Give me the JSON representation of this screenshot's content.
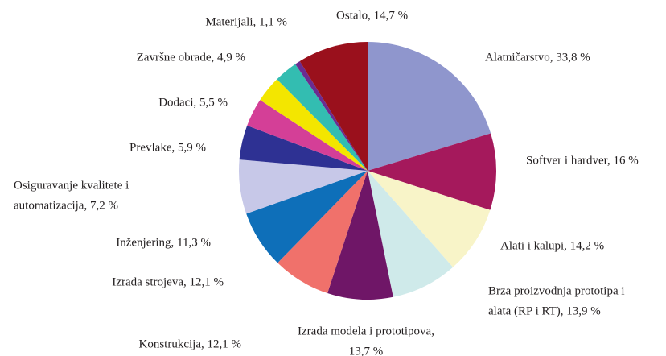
{
  "chart_data": {
    "type": "pie",
    "labels": [
      [
        "Alatničarstvo, 33,8 %"
      ],
      [
        "Softver i hardver, 16 %"
      ],
      [
        "Alati i kalupi, 14,2 %"
      ],
      [
        "Brza proizvodnja prototipa i",
        "alata (RP i RT), 13,9 %"
      ],
      [
        "Izrada modela i prototipova,",
        "13,7 %"
      ],
      [
        "Konstrukcija, 12,1 %"
      ],
      [
        "Izrada strojeva, 12,1 %"
      ],
      [
        "Inženjering, 11,3 %"
      ],
      [
        "Osiguravanje kvalitete i",
        "automatizacija, 7,2 %"
      ],
      [
        "Prevlake, 5,9 %"
      ],
      [
        "Dodaci, 5,5 %"
      ],
      [
        "Završne obrade, 4,9 %"
      ],
      [
        "Materijali, 1,1 %"
      ],
      [
        "Ostalo, 14,7 %"
      ]
    ],
    "values": [
      33.8,
      16,
      14.2,
      13.9,
      13.7,
      12.1,
      12.1,
      11.3,
      7.2,
      5.9,
      5.5,
      4.9,
      1.1,
      14.7
    ],
    "colors": [
      "#8f96cd",
      "#a5195c",
      "#f8f4c8",
      "#cfeaea",
      "#6f1667",
      "#f0716b",
      "#0e6fb9",
      "#c7c8e8",
      "#2e3193",
      "#d43f97",
      "#f3e600",
      "#33bdb1",
      "#6b2c91",
      "#9a101c"
    ]
  }
}
